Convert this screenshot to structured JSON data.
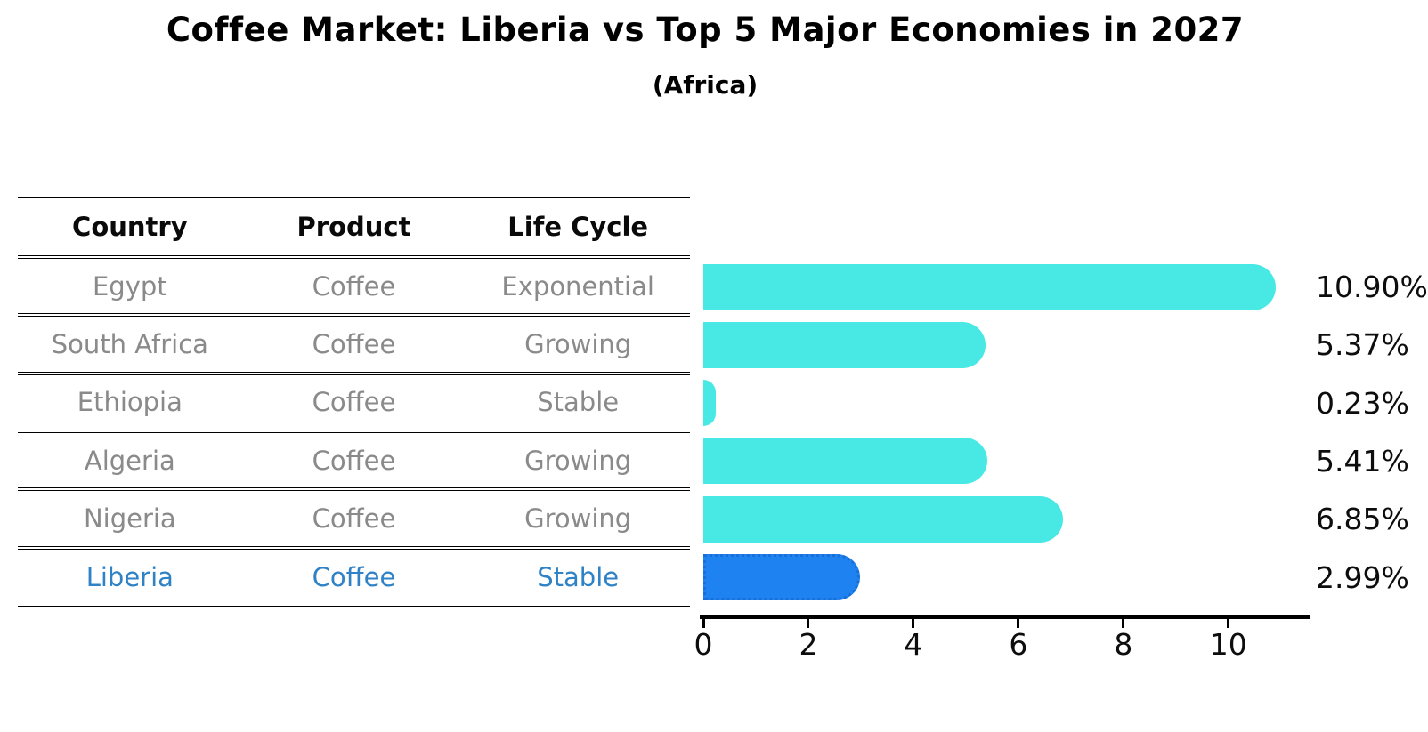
{
  "title": "Coffee Market: Liberia vs Top 5 Major Economies in 2027",
  "subtitle": "(Africa)",
  "table": {
    "columns": [
      "Country",
      "Product",
      "Life Cycle"
    ],
    "rows": [
      {
        "country": "Egypt",
        "product": "Coffee",
        "life_cycle": "Exponential",
        "highlight": false
      },
      {
        "country": "South Africa",
        "product": "Coffee",
        "life_cycle": "Growing",
        "highlight": false
      },
      {
        "country": "Ethiopia",
        "product": "Coffee",
        "life_cycle": "Stable",
        "highlight": false
      },
      {
        "country": "Algeria",
        "product": "Coffee",
        "life_cycle": "Growing",
        "highlight": false
      },
      {
        "country": "Nigeria",
        "product": "Coffee",
        "life_cycle": "Growing",
        "highlight": false
      },
      {
        "country": "Liberia",
        "product": "Coffee",
        "life_cycle": "Stable",
        "highlight": true
      }
    ]
  },
  "chart_data": {
    "type": "bar",
    "orientation": "horizontal",
    "title": "Coffee Market: Liberia vs Top 5 Major Economies in 2027",
    "subtitle": "(Africa)",
    "categories": [
      "Egypt",
      "South Africa",
      "Ethiopia",
      "Algeria",
      "Nigeria",
      "Liberia"
    ],
    "values": [
      10.9,
      5.37,
      0.23,
      5.41,
      6.85,
      2.99
    ],
    "value_labels": [
      "10.90%",
      "5.37%",
      "0.23%",
      "5.41%",
      "6.85%",
      "2.99%"
    ],
    "highlight_index": 5,
    "x_ticks": [
      0,
      2,
      4,
      6,
      8,
      10
    ],
    "xlim": [
      0,
      11.53
    ],
    "xlabel": "",
    "ylabel": "",
    "grid": false,
    "legend": false
  },
  "colors": {
    "bar": "#48e9e5",
    "highlight_bar": "#1e82f0",
    "highlight_border": "#1b6ed8",
    "row_text": "#8a8a8a",
    "highlight_text": "#2f82c6",
    "table_line": "#000000",
    "axis": "#000000",
    "value_text": "#0d0d0d"
  }
}
